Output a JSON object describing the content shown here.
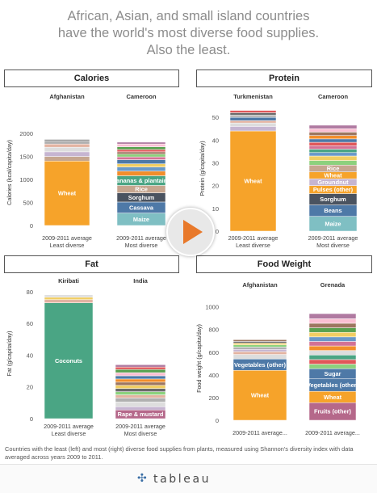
{
  "headline": [
    "African, Asian, and small island countries",
    "have the world's most diverse food supplies.",
    "Also the least."
  ],
  "footnote": "Countries with the least (left) and most (right) diverse food supplies from plants, measured using Shannon's diversity index with data averaged across years 2009 to 2011.",
  "brand": "tableau",
  "colors": {
    "orange": "#f6a32a",
    "green": "#4aa584",
    "teal": "#7fbfc3",
    "blue": "#4e79a7",
    "slate": "#4a5360",
    "pink": "#b5688a",
    "lavender": "#c6b5d1",
    "tan": "#c6a68f"
  },
  "chart_data": [
    {
      "type": "bar",
      "title": "Calories",
      "ylabel": "Calories (kcal/capita/day)",
      "ylim": [
        0,
        2300
      ],
      "yticks": [
        0,
        500,
        1000,
        1500,
        2000
      ],
      "categories": [
        "Afghanistan",
        "Cameroon"
      ],
      "xlabels": [
        [
          "2009-2011 average",
          "Least diverse"
        ],
        [
          "2009-2011 average",
          "Most diverse"
        ]
      ],
      "stacks": [
        [
          {
            "label": "Wheat",
            "value": 1400,
            "color": "orange"
          },
          {
            "value": 100,
            "color": "tan"
          },
          {
            "value": 100,
            "color": "lavender"
          },
          {
            "value": 100,
            "color": "#dddddd"
          },
          {
            "value": 70,
            "color": "#e3b3a1"
          },
          {
            "value": 60,
            "color": "#b0b0b0"
          },
          {
            "value": 40,
            "color": "#999999"
          }
        ],
        [
          {
            "label": "Maize",
            "value": 270,
            "color": "teal"
          },
          {
            "label": "Cassava",
            "value": 240,
            "color": "blue"
          },
          {
            "label": "Sorghum",
            "value": 200,
            "color": "slate"
          },
          {
            "label": "Rice",
            "value": 160,
            "color": "tan"
          },
          {
            "label": "Bananas & plantains",
            "value": 210,
            "color": "green"
          },
          {
            "value": 100,
            "color": "#f28e2b"
          },
          {
            "value": 90,
            "color": "#6a99c8"
          },
          {
            "value": 70,
            "color": "#f1ce63"
          },
          {
            "value": 90,
            "color": "#4e79a7"
          },
          {
            "value": 60,
            "color": "#d37295"
          },
          {
            "value": 60,
            "color": "#8cd17d"
          },
          {
            "value": 50,
            "color": "#9d7660"
          },
          {
            "value": 50,
            "color": "#e15759"
          },
          {
            "value": 60,
            "color": "#59a14f"
          },
          {
            "value": 60,
            "color": "#fabfd2"
          },
          {
            "value": 40,
            "color": "#b07aa1"
          }
        ]
      ]
    },
    {
      "type": "bar",
      "title": "Protein",
      "ylabel": "Protein (g/capita/day)",
      "ylim": [
        0,
        55
      ],
      "yticks": [
        0,
        10,
        20,
        30,
        40,
        50
      ],
      "categories": [
        "Turkmenistan",
        "Cameroon"
      ],
      "xlabels": [
        [
          "2009-2011 average",
          "Least diverse"
        ],
        [
          "2009-2011 average",
          "Most diverse"
        ]
      ],
      "stacks": [
        [
          {
            "label": "Wheat",
            "value": 44,
            "color": "orange"
          },
          {
            "value": 2,
            "color": "lavender"
          },
          {
            "value": 1.5,
            "color": "#dddddd"
          },
          {
            "value": 1,
            "color": "#e3b3a1"
          },
          {
            "value": 1.5,
            "color": "#4e79a7"
          },
          {
            "value": 1,
            "color": "#b0b0b0"
          },
          {
            "value": 1,
            "color": "#6a6a6a"
          },
          {
            "value": 1,
            "color": "#e15759"
          }
        ],
        [
          {
            "label": "Maize",
            "value": 6.5,
            "color": "teal"
          },
          {
            "label": "Beans",
            "value": 5,
            "color": "blue"
          },
          {
            "label": "Sorghum",
            "value": 5,
            "color": "slate"
          },
          {
            "label": "Pulses (other)",
            "value": 3.5,
            "color": "orange"
          },
          {
            "label": "Groundnut",
            "value": 3,
            "color": "lavender"
          },
          {
            "label": "Wheat",
            "value": 3,
            "color": "orange"
          },
          {
            "label": "Rice",
            "value": 3,
            "color": "tan"
          },
          {
            "value": 2,
            "color": "#8cd17d"
          },
          {
            "value": 2,
            "color": "#f1ce63"
          },
          {
            "value": 1.5,
            "color": "#6a99c8"
          },
          {
            "value": 1.5,
            "color": "#4aa584"
          },
          {
            "value": 1.5,
            "color": "#d37295"
          },
          {
            "value": 1.5,
            "color": "#e15759"
          },
          {
            "value": 1.5,
            "color": "#4e79a7"
          },
          {
            "value": 1.5,
            "color": "#f28e2b"
          },
          {
            "value": 1.5,
            "color": "#9d7660"
          },
          {
            "value": 1.5,
            "color": "#fabfd2"
          },
          {
            "value": 1.5,
            "color": "#b07aa1"
          }
        ]
      ]
    },
    {
      "type": "bar",
      "title": "Fat",
      "ylabel": "Fat (g/capita/day)",
      "ylim": [
        0,
        82
      ],
      "yticks": [
        0,
        20,
        40,
        60,
        80
      ],
      "categories": [
        "Kiribati",
        "India"
      ],
      "xlabels": [
        [
          "2009-2011 average",
          "Least diverse"
        ],
        [
          "2009-2011 average",
          "Most diverse"
        ]
      ],
      "stacks": [
        [
          {
            "label": "Coconuts",
            "value": 73,
            "color": "green"
          },
          {
            "value": 2,
            "color": "#e3b3a1"
          },
          {
            "value": 1.5,
            "color": "#f1ce63"
          },
          {
            "value": 1.5,
            "color": "#dddddd"
          }
        ],
        [
          {
            "label": "Rape & mustard",
            "value": 5.5,
            "color": "pink"
          },
          {
            "value": 2,
            "color": "#c6b5d1"
          },
          {
            "value": 3,
            "color": "#dddddd"
          },
          {
            "value": 2.5,
            "color": "#b0b0b0"
          },
          {
            "value": 2,
            "color": "#e3b3a1"
          },
          {
            "value": 2,
            "color": "#8cd17d"
          },
          {
            "value": 2,
            "color": "#6a6a6a"
          },
          {
            "value": 2,
            "color": "#f1ce63"
          },
          {
            "value": 2,
            "color": "#9d7660"
          },
          {
            "value": 2,
            "color": "#f28e2b"
          },
          {
            "value": 2,
            "color": "#4e79a7"
          },
          {
            "value": 2,
            "color": "#fabfd2"
          },
          {
            "value": 2,
            "color": "#59a14f"
          },
          {
            "value": 1.5,
            "color": "#e15759"
          },
          {
            "value": 1.5,
            "color": "#b07aa1"
          }
        ]
      ]
    },
    {
      "type": "bar",
      "title": "Food Weight",
      "ylabel": "Food weight (g/capita/day)",
      "ylim": [
        0,
        1090
      ],
      "yticks": [
        0,
        200,
        400,
        600,
        800,
        1000
      ],
      "categories": [
        "Afghanistan",
        "Grenada"
      ],
      "xlabels": [
        [
          "2009-2011 average..."
        ],
        [
          "2009-2011 average..."
        ]
      ],
      "stacks": [
        [
          {
            "label": "Wheat",
            "value": 440,
            "color": "orange"
          },
          {
            "label": "Vegetables (other)",
            "value": 100,
            "color": "blue"
          },
          {
            "value": 40,
            "color": "#dddddd"
          },
          {
            "value": 25,
            "color": "#e3b3a1"
          },
          {
            "value": 20,
            "color": "#c6b5d1"
          },
          {
            "value": 20,
            "color": "#b0b0b0"
          },
          {
            "value": 20,
            "color": "#8cd17d"
          },
          {
            "value": 15,
            "color": "#f1ce63"
          },
          {
            "value": 15,
            "color": "#6a6a6a"
          },
          {
            "value": 15,
            "color": "#9d7660"
          }
        ],
        [
          {
            "label": "Fruits (other)",
            "value": 155,
            "color": "pink"
          },
          {
            "label": "Wheat",
            "value": 100,
            "color": "orange"
          },
          {
            "label": "Vegetables (other)",
            "value": 110,
            "color": "blue"
          },
          {
            "label": "Sugar",
            "value": 90,
            "color": "blue"
          },
          {
            "value": 40,
            "color": "#8cd17d"
          },
          {
            "value": 40,
            "color": "#e15759"
          },
          {
            "value": 40,
            "color": "#4aa584"
          },
          {
            "value": 40,
            "color": "#dddddd"
          },
          {
            "value": 40,
            "color": "#f28e2b"
          },
          {
            "value": 40,
            "color": "#d37295"
          },
          {
            "value": 40,
            "color": "#6a99c8"
          },
          {
            "value": 40,
            "color": "#f1ce63"
          },
          {
            "value": 40,
            "color": "#59a14f"
          },
          {
            "value": 40,
            "color": "#9d7660"
          },
          {
            "value": 40,
            "color": "#fabfd2"
          },
          {
            "value": 45,
            "color": "#b07aa1"
          }
        ]
      ]
    }
  ]
}
